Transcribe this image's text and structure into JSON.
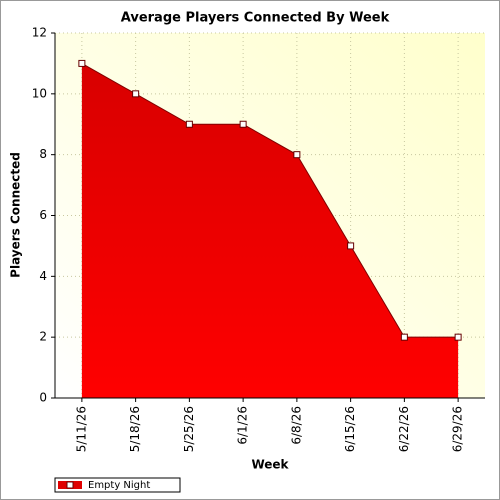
{
  "chart_data": {
    "type": "area",
    "title": "Average Players Connected By Week",
    "x_label": "Week",
    "y_label": "Players Connected",
    "categories": [
      "5/11/26",
      "5/18/26",
      "5/25/26",
      "6/1/26",
      "6/8/26",
      "6/15/26",
      "6/22/26",
      "6/29/26"
    ],
    "series": [
      {
        "name": "Empty Night",
        "color": "#e00000",
        "values": [
          11,
          10,
          9,
          9,
          8,
          5,
          2,
          2
        ]
      }
    ],
    "ylim": [
      0,
      12
    ],
    "yticks": [
      0,
      2,
      4,
      6,
      8,
      10,
      12
    ],
    "grid": true,
    "legend": "bottom-left"
  }
}
